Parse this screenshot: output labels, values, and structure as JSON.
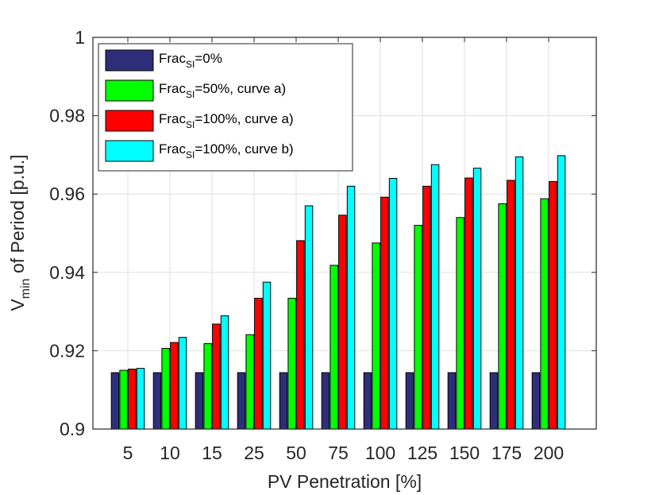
{
  "chart_data": {
    "type": "bar",
    "title": "",
    "xlabel": "PV Penetration [%]",
    "ylabel_main": "V",
    "ylabel_sub": "min",
    "ylabel_rest": " of Period [p.u.]",
    "categories": [
      "5",
      "10",
      "15",
      "25",
      "50",
      "75",
      "100",
      "125",
      "150",
      "175",
      "200"
    ],
    "ylim": [
      0.9,
      1.0
    ],
    "yticks": [
      0.9,
      0.92,
      0.94,
      0.96,
      0.98,
      1
    ],
    "ytick_labels": [
      "0.9",
      "0.92",
      "0.94",
      "0.96",
      "0.98",
      "1"
    ],
    "grid": true,
    "legend_position": "top-left",
    "series": [
      {
        "name_main": "Frac",
        "name_sub": "SI",
        "name_rest": "=0%",
        "color": "#2e2e7a",
        "values": [
          0.9144,
          0.9144,
          0.9144,
          0.9144,
          0.9144,
          0.9144,
          0.9144,
          0.9144,
          0.9144,
          0.9144,
          0.9144
        ]
      },
      {
        "name_main": "Frac",
        "name_sub": "SI",
        "name_rest": "=50%, curve a)",
        "color": "#00ff00",
        "values": [
          0.915,
          0.9206,
          0.9218,
          0.9241,
          0.9334,
          0.9418,
          0.9475,
          0.952,
          0.954,
          0.9575,
          0.9588
        ]
      },
      {
        "name_main": "Frac",
        "name_sub": "SI",
        "name_rest": "=100%, curve a)",
        "color": "#ff0000",
        "values": [
          0.9153,
          0.9221,
          0.9268,
          0.9334,
          0.9481,
          0.9546,
          0.9592,
          0.962,
          0.9641,
          0.9635,
          0.9632
        ]
      },
      {
        "name_main": "Frac",
        "name_sub": "SI",
        "name_rest": "=100%, curve b)",
        "color": "#00ffff",
        "values": [
          0.9155,
          0.9234,
          0.9289,
          0.9375,
          0.957,
          0.962,
          0.964,
          0.9675,
          0.9666,
          0.9695,
          0.9698
        ]
      }
    ]
  }
}
